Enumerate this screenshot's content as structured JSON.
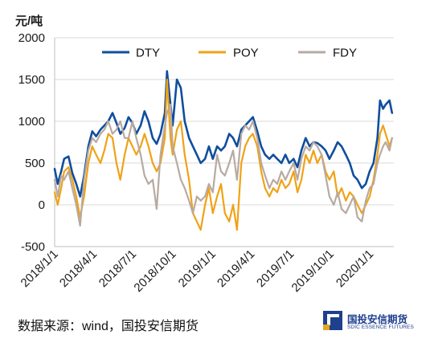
{
  "chart_data": {
    "type": "line",
    "ylabel": "元/吨",
    "ylim": [
      -500,
      2000
    ],
    "yticks": [
      -500,
      0,
      500,
      1000,
      1500,
      2000
    ],
    "xlim": [
      "2018-01-01",
      "2020-02-25"
    ],
    "xticks": [
      "2018/1/1",
      "2018/4/1",
      "2018/7/1",
      "2018/10/1",
      "2019/1/1",
      "2019/4/1",
      "2019/7/1",
      "2019/10/1",
      "2020/1/1"
    ],
    "grid": true,
    "legend": "top",
    "x": [
      "2018-01-01",
      "2018-01-08",
      "2018-01-16",
      "2018-01-23",
      "2018-02-02",
      "2018-02-11",
      "2018-02-20",
      "2018-03-01",
      "2018-03-10",
      "2018-03-20",
      "2018-03-29",
      "2018-04-07",
      "2018-04-17",
      "2018-04-26",
      "2018-05-05",
      "2018-05-15",
      "2018-05-24",
      "2018-06-02",
      "2018-06-12",
      "2018-06-21",
      "2018-06-30",
      "2018-07-09",
      "2018-07-19",
      "2018-07-28",
      "2018-08-06",
      "2018-08-16",
      "2018-08-25",
      "2018-09-03",
      "2018-09-13",
      "2018-09-18",
      "2018-09-26",
      "2018-10-01",
      "2018-10-11",
      "2018-10-20",
      "2018-10-29",
      "2018-11-08",
      "2018-11-17",
      "2018-11-26",
      "2018-12-05",
      "2018-12-15",
      "2018-12-24",
      "2019-01-02",
      "2019-01-12",
      "2019-01-21",
      "2019-01-30",
      "2019-02-09",
      "2019-02-18",
      "2019-02-27",
      "2019-03-09",
      "2019-03-18",
      "2019-03-27",
      "2019-04-05",
      "2019-04-15",
      "2019-04-24",
      "2019-05-03",
      "2019-05-13",
      "2019-05-22",
      "2019-05-31",
      "2019-06-10",
      "2019-06-19",
      "2019-06-28",
      "2019-07-08",
      "2019-07-17",
      "2019-07-26",
      "2019-08-05",
      "2019-08-14",
      "2019-08-23",
      "2019-09-01",
      "2019-09-11",
      "2019-09-20",
      "2019-09-29",
      "2019-10-09",
      "2019-10-18",
      "2019-10-27",
      "2019-11-06",
      "2019-11-15",
      "2019-11-24",
      "2019-12-03",
      "2019-12-13",
      "2019-12-22",
      "2019-12-31",
      "2020-01-09",
      "2020-01-18",
      "2020-01-24",
      "2020-01-31",
      "2020-02-06",
      "2020-02-15",
      "2020-02-21"
    ],
    "series": [
      {
        "name": "DTY",
        "color": "#104E9E",
        "values": [
          430,
          250,
          400,
          550,
          580,
          380,
          250,
          100,
          350,
          700,
          880,
          820,
          900,
          950,
          1000,
          1100,
          980,
          850,
          920,
          1050,
          980,
          850,
          950,
          1120,
          1000,
          800,
          730,
          850,
          1100,
          1600,
          1200,
          950,
          1500,
          1400,
          1000,
          800,
          700,
          600,
          500,
          550,
          700,
          550,
          700,
          650,
          700,
          850,
          800,
          700,
          900,
          950,
          1000,
          1050,
          880,
          700,
          600,
          550,
          600,
          550,
          500,
          600,
          500,
          550,
          450,
          650,
          800,
          700,
          750,
          740,
          700,
          650,
          550,
          650,
          750,
          700,
          600,
          500,
          350,
          300,
          200,
          250,
          400,
          500,
          800,
          1250,
          1150,
          1200,
          1250,
          1100
        ]
      },
      {
        "name": "POY",
        "color": "#F0A216",
        "values": [
          150,
          0,
          200,
          400,
          450,
          300,
          100,
          -150,
          100,
          500,
          700,
          600,
          500,
          650,
          850,
          800,
          500,
          300,
          600,
          800,
          700,
          600,
          700,
          850,
          700,
          500,
          400,
          500,
          800,
          1500,
          800,
          600,
          900,
          1000,
          600,
          300,
          -100,
          -200,
          -300,
          0,
          200,
          -100,
          100,
          250,
          -100,
          -200,
          0,
          -300,
          500,
          700,
          800,
          850,
          700,
          400,
          200,
          100,
          200,
          150,
          300,
          200,
          250,
          400,
          150,
          300,
          600,
          500,
          650,
          500,
          600,
          400,
          300,
          400,
          100,
          200,
          50,
          150,
          100,
          0,
          -100,
          0,
          100,
          300,
          600,
          850,
          950,
          850,
          700,
          800
        ]
      },
      {
        "name": "FDY",
        "color": "#B7AAA1",
        "values": [
          300,
          100,
          350,
          300,
          400,
          200,
          0,
          -250,
          300,
          650,
          800,
          750,
          850,
          900,
          1000,
          850,
          900,
          1000,
          800,
          800,
          1000,
          800,
          600,
          350,
          250,
          300,
          -50,
          600,
          950,
          1100,
          1200,
          700,
          500,
          300,
          200,
          50,
          -100,
          100,
          50,
          100,
          250,
          150,
          600,
          400,
          350,
          500,
          650,
          300,
          850,
          950,
          900,
          1000,
          800,
          500,
          350,
          200,
          300,
          250,
          400,
          300,
          400,
          500,
          300,
          550,
          700,
          650,
          750,
          700,
          600,
          350,
          100,
          0,
          150,
          -50,
          -100,
          0,
          100,
          -150,
          -200,
          50,
          200,
          250,
          500,
          600,
          700,
          750,
          650,
          800
        ]
      }
    ]
  },
  "source_note": "数据来源：wind，国投安信期货",
  "logo": {
    "name_cn": "国投安信期货",
    "name_en": "SDIC ESSENCE FUTURES"
  }
}
